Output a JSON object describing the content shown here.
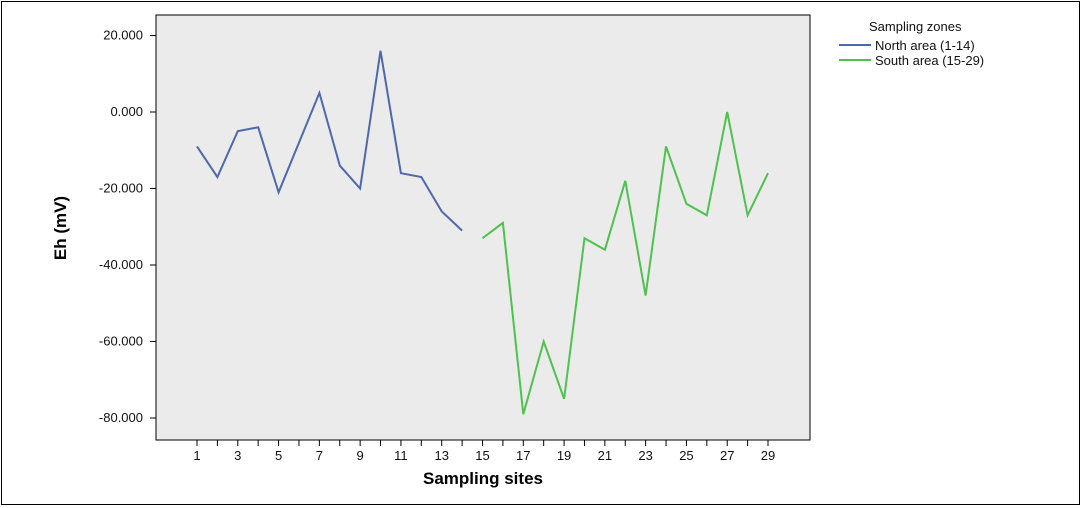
{
  "chart_data": {
    "type": "line",
    "title": "",
    "xlabel": "Sampling sites",
    "ylabel": "Eh (mV)",
    "ylim": [
      -85,
      25
    ],
    "xlim": [
      -1,
      31
    ],
    "x_ticks": [
      1,
      3,
      5,
      7,
      9,
      11,
      13,
      15,
      17,
      19,
      21,
      23,
      25,
      27,
      29
    ],
    "y_ticks": [
      20,
      0,
      -20,
      -40,
      -60,
      -80
    ],
    "y_tick_labels": [
      "20.000",
      "0.000",
      "-20.000",
      "-40.000",
      "-60.000",
      "-80.000"
    ],
    "background": "#ebebeb",
    "grid": false,
    "legend": {
      "title": "Sampling zones",
      "position": "right"
    },
    "series": [
      {
        "name": "North area (1-14)",
        "color": "#4e68ac",
        "x": [
          1,
          2,
          3,
          4,
          5,
          6,
          7,
          8,
          9,
          10,
          11,
          12,
          13,
          14
        ],
        "y": [
          -9,
          -17,
          -5,
          -4,
          -21,
          -8,
          5,
          -14,
          -20,
          16,
          -16,
          -17,
          -26,
          -31
        ]
      },
      {
        "name": "South area (15-29)",
        "color": "#4ec24e",
        "x": [
          15,
          16,
          17,
          18,
          19,
          20,
          21,
          22,
          23,
          24,
          25,
          26,
          27,
          28,
          29
        ],
        "y": [
          -33,
          -29,
          -79,
          -60,
          -75,
          -33,
          -36,
          -18,
          -48,
          -9,
          -24,
          -27,
          0,
          -27,
          -16
        ]
      }
    ]
  }
}
